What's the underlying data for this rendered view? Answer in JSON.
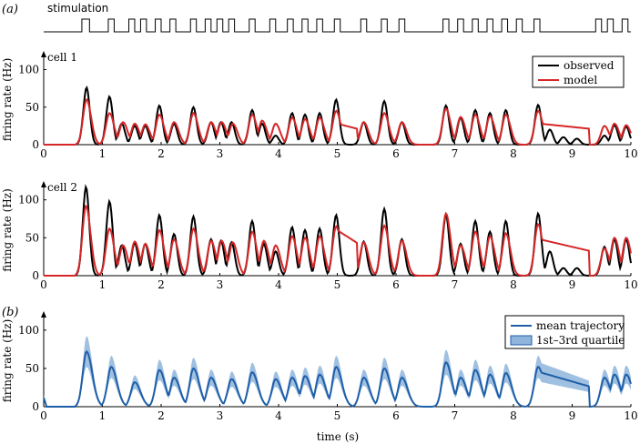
{
  "stimulation_label": "stimulation",
  "stimulation_on_intervals": [
    [
      0.65,
      0.78
    ],
    [
      1.1,
      1.2
    ],
    [
      1.45,
      1.55
    ],
    [
      1.65,
      1.75
    ],
    [
      1.9,
      2.0
    ],
    [
      2.15,
      2.25
    ],
    [
      2.5,
      2.6
    ],
    [
      2.75,
      2.85
    ],
    [
      2.95,
      3.05
    ],
    [
      3.15,
      3.25
    ],
    [
      3.5,
      3.6
    ],
    [
      3.85,
      3.95
    ],
    [
      4.15,
      4.25
    ],
    [
      4.4,
      4.5
    ],
    [
      4.65,
      4.75
    ],
    [
      4.95,
      5.05
    ],
    [
      5.4,
      5.5
    ],
    [
      5.75,
      5.85
    ],
    [
      6.05,
      6.15
    ],
    [
      6.8,
      6.9
    ],
    [
      7.05,
      7.15
    ],
    [
      7.3,
      7.4
    ],
    [
      7.55,
      7.65
    ],
    [
      7.8,
      7.9
    ],
    [
      8.05,
      8.15
    ],
    [
      8.35,
      8.45
    ],
    [
      9.4,
      9.5
    ],
    [
      9.6,
      9.7
    ],
    [
      9.85,
      9.95
    ]
  ],
  "colors": {
    "observed": "#000000",
    "model": "#d62728",
    "mean": "#1f5fa8",
    "band": "#8fb5dc"
  },
  "chart_data": [
    {
      "panel": "(a)",
      "type": "line",
      "annotation": "cell 1",
      "ylabel": "firing rate (Hz)",
      "xlabel": "",
      "xlim": [
        0,
        10
      ],
      "ylim": [
        0,
        120
      ],
      "x_ticks": [
        0,
        1,
        2,
        3,
        4,
        5,
        6,
        7,
        8,
        9,
        10
      ],
      "y_ticks": [
        0,
        50,
        100
      ],
      "legend_position": "top-right",
      "series": [
        {
          "name": "observed",
          "peaks": [
            [
              0.73,
              76
            ],
            [
              1.12,
              64
            ],
            [
              1.33,
              28
            ],
            [
              1.55,
              25
            ],
            [
              1.73,
              25
            ],
            [
              1.97,
              52
            ],
            [
              2.22,
              28
            ],
            [
              2.55,
              50
            ],
            [
              2.85,
              30
            ],
            [
              3.02,
              30
            ],
            [
              3.2,
              30
            ],
            [
              3.55,
              46
            ],
            [
              3.72,
              28
            ],
            [
              3.95,
              12
            ],
            [
              4.23,
              42
            ],
            [
              4.45,
              40
            ],
            [
              4.7,
              42
            ],
            [
              4.98,
              60
            ],
            [
              5.45,
              30
            ],
            [
              5.8,
              58
            ],
            [
              6.1,
              30
            ],
            [
              6.85,
              52
            ],
            [
              7.1,
              36
            ],
            [
              7.35,
              46
            ],
            [
              7.6,
              42
            ],
            [
              7.87,
              46
            ],
            [
              8.42,
              53
            ],
            [
              8.62,
              20
            ],
            [
              8.85,
              10
            ],
            [
              9.08,
              8
            ],
            [
              9.55,
              12
            ],
            [
              9.72,
              26
            ],
            [
              9.92,
              24
            ]
          ]
        },
        {
          "name": "model",
          "peaks": [
            [
              0.73,
              60
            ],
            [
              1.12,
              42
            ],
            [
              1.35,
              30
            ],
            [
              1.55,
              28
            ],
            [
              1.73,
              27
            ],
            [
              1.97,
              40
            ],
            [
              2.22,
              30
            ],
            [
              2.55,
              42
            ],
            [
              2.85,
              30
            ],
            [
              3.03,
              30
            ],
            [
              3.22,
              28
            ],
            [
              3.55,
              40
            ],
            [
              3.72,
              32
            ],
            [
              3.95,
              28
            ],
            [
              4.23,
              36
            ],
            [
              4.45,
              34
            ],
            [
              4.7,
              36
            ],
            [
              4.98,
              45
            ],
            [
              5.45,
              30
            ],
            [
              5.8,
              42
            ],
            [
              6.1,
              30
            ],
            [
              6.85,
              48
            ],
            [
              7.1,
              37
            ],
            [
              7.35,
              40
            ],
            [
              7.6,
              38
            ],
            [
              7.87,
              40
            ],
            [
              8.42,
              45
            ],
            [
              9.55,
              25
            ],
            [
              9.72,
              28
            ],
            [
              9.92,
              26
            ]
          ]
        }
      ]
    },
    {
      "panel": "",
      "type": "line",
      "annotation": "cell 2",
      "ylabel": "firing rate (Hz)",
      "xlabel": "",
      "xlim": [
        0,
        10
      ],
      "ylim": [
        0,
        120
      ],
      "x_ticks": [
        0,
        1,
        2,
        3,
        4,
        5,
        6,
        7,
        8,
        9,
        10
      ],
      "y_ticks": [
        0,
        50,
        100
      ],
      "series": [
        {
          "name": "observed",
          "peaks": [
            [
              0.72,
              117
            ],
            [
              1.12,
              98
            ],
            [
              1.33,
              40
            ],
            [
              1.55,
              43
            ],
            [
              1.73,
              42
            ],
            [
              1.97,
              80
            ],
            [
              2.22,
              55
            ],
            [
              2.55,
              78
            ],
            [
              2.85,
              48
            ],
            [
              3.02,
              46
            ],
            [
              3.2,
              44
            ],
            [
              3.55,
              72
            ],
            [
              3.75,
              42
            ],
            [
              3.95,
              32
            ],
            [
              4.23,
              64
            ],
            [
              4.45,
              60
            ],
            [
              4.7,
              62
            ],
            [
              4.98,
              80
            ],
            [
              5.45,
              45
            ],
            [
              5.8,
              88
            ],
            [
              6.1,
              48
            ],
            [
              6.85,
              80
            ],
            [
              7.1,
              42
            ],
            [
              7.35,
              72
            ],
            [
              7.6,
              58
            ],
            [
              7.87,
              72
            ],
            [
              8.42,
              82
            ],
            [
              8.62,
              32
            ],
            [
              8.85,
              10
            ],
            [
              9.08,
              10
            ],
            [
              9.55,
              38
            ],
            [
              9.72,
              48
            ],
            [
              9.92,
              48
            ]
          ]
        },
        {
          "name": "model",
          "peaks": [
            [
              0.72,
              92
            ],
            [
              1.12,
              62
            ],
            [
              1.35,
              40
            ],
            [
              1.55,
              45
            ],
            [
              1.73,
              42
            ],
            [
              1.97,
              60
            ],
            [
              2.22,
              48
            ],
            [
              2.55,
              62
            ],
            [
              2.85,
              46
            ],
            [
              3.03,
              46
            ],
            [
              3.22,
              44
            ],
            [
              3.55,
              58
            ],
            [
              3.75,
              46
            ],
            [
              3.95,
              40
            ],
            [
              4.23,
              52
            ],
            [
              4.45,
              50
            ],
            [
              4.7,
              52
            ],
            [
              4.98,
              65
            ],
            [
              5.45,
              44
            ],
            [
              5.8,
              66
            ],
            [
              6.1,
              46
            ],
            [
              6.85,
              82
            ],
            [
              7.1,
              40
            ],
            [
              7.35,
              58
            ],
            [
              7.6,
              52
            ],
            [
              7.87,
              56
            ],
            [
              8.42,
              68
            ],
            [
              9.55,
              36
            ],
            [
              9.72,
              50
            ],
            [
              9.92,
              50
            ]
          ]
        }
      ]
    },
    {
      "panel": "(b)",
      "type": "line",
      "ylabel": "firing rate (Hz)",
      "xlabel": "time (s)",
      "xlim": [
        0,
        10
      ],
      "ylim": [
        0,
        120
      ],
      "x_ticks": [
        0,
        1,
        2,
        3,
        4,
        5,
        6,
        7,
        8,
        9,
        10
      ],
      "y_ticks": [
        0,
        50,
        100
      ],
      "legend_position": "top-right",
      "series": [
        {
          "name": "mean trajectory",
          "peaks": [
            [
              0.73,
              72
            ],
            [
              1.15,
              52
            ],
            [
              1.55,
              32
            ],
            [
              1.97,
              48
            ],
            [
              2.22,
              38
            ],
            [
              2.55,
              50
            ],
            [
              2.85,
              38
            ],
            [
              3.2,
              36
            ],
            [
              3.55,
              45
            ],
            [
              3.95,
              36
            ],
            [
              4.23,
              38
            ],
            [
              4.45,
              40
            ],
            [
              4.7,
              42
            ],
            [
              4.98,
              52
            ],
            [
              5.45,
              38
            ],
            [
              5.8,
              50
            ],
            [
              6.1,
              38
            ],
            [
              6.85,
              58
            ],
            [
              7.1,
              38
            ],
            [
              7.35,
              48
            ],
            [
              7.6,
              42
            ],
            [
              7.87,
              44
            ],
            [
              8.42,
              52
            ],
            [
              9.55,
              38
            ],
            [
              9.72,
              42
            ],
            [
              9.92,
              42
            ]
          ]
        },
        {
          "name": "1st–3rd quartile",
          "relative_width": 0.28
        }
      ]
    }
  ]
}
